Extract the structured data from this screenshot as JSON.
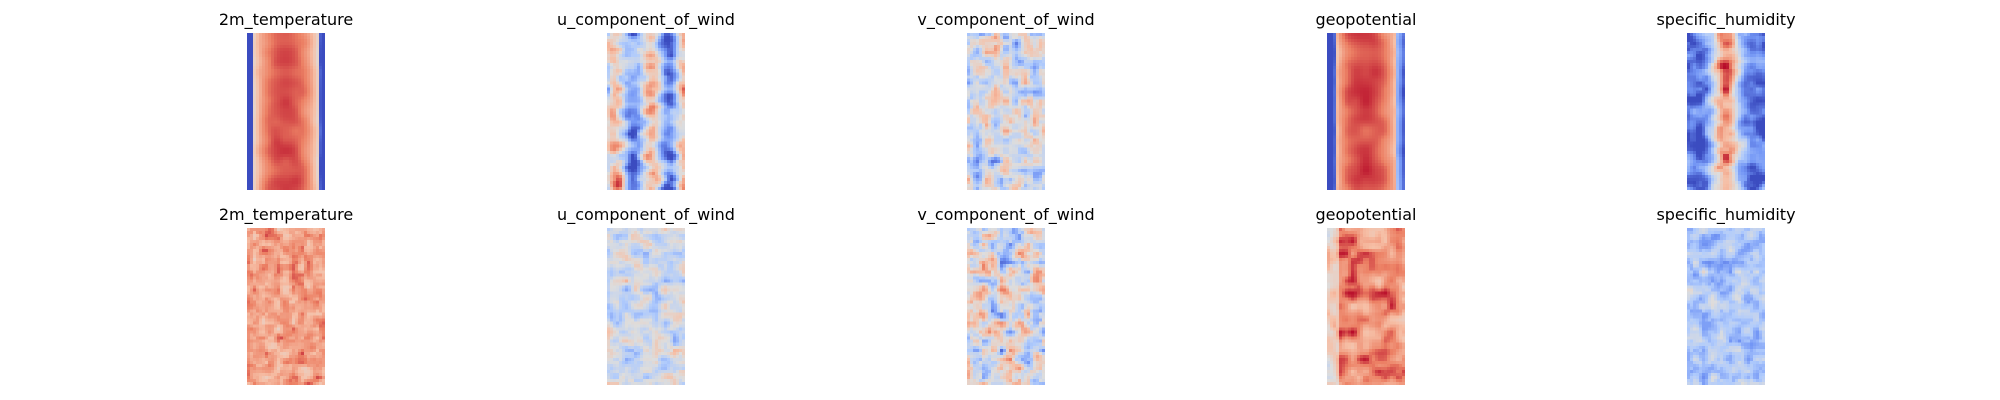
{
  "chart_data": {
    "type": "heatmap",
    "colormap": "coolwarm",
    "colormap_stops": [
      "#3b4cc0",
      "#7396f5",
      "#b0cbfc",
      "#dddddd",
      "#f6bfa6",
      "#ec8064",
      "#b40426"
    ],
    "grid": false,
    "axes_visible": false,
    "rows": [
      {
        "panels": [
          {
            "title": "2m_temperature"
          },
          {
            "title": "u_component_of_wind"
          },
          {
            "title": "v_component_of_wind"
          },
          {
            "title": "geopotential"
          },
          {
            "title": "specific_humidity"
          }
        ]
      },
      {
        "panels": [
          {
            "title": "2m_temperature"
          },
          {
            "title": "u_component_of_wind"
          },
          {
            "title": "v_component_of_wind"
          },
          {
            "title": "geopotential"
          },
          {
            "title": "specific_humidity"
          }
        ]
      }
    ]
  }
}
